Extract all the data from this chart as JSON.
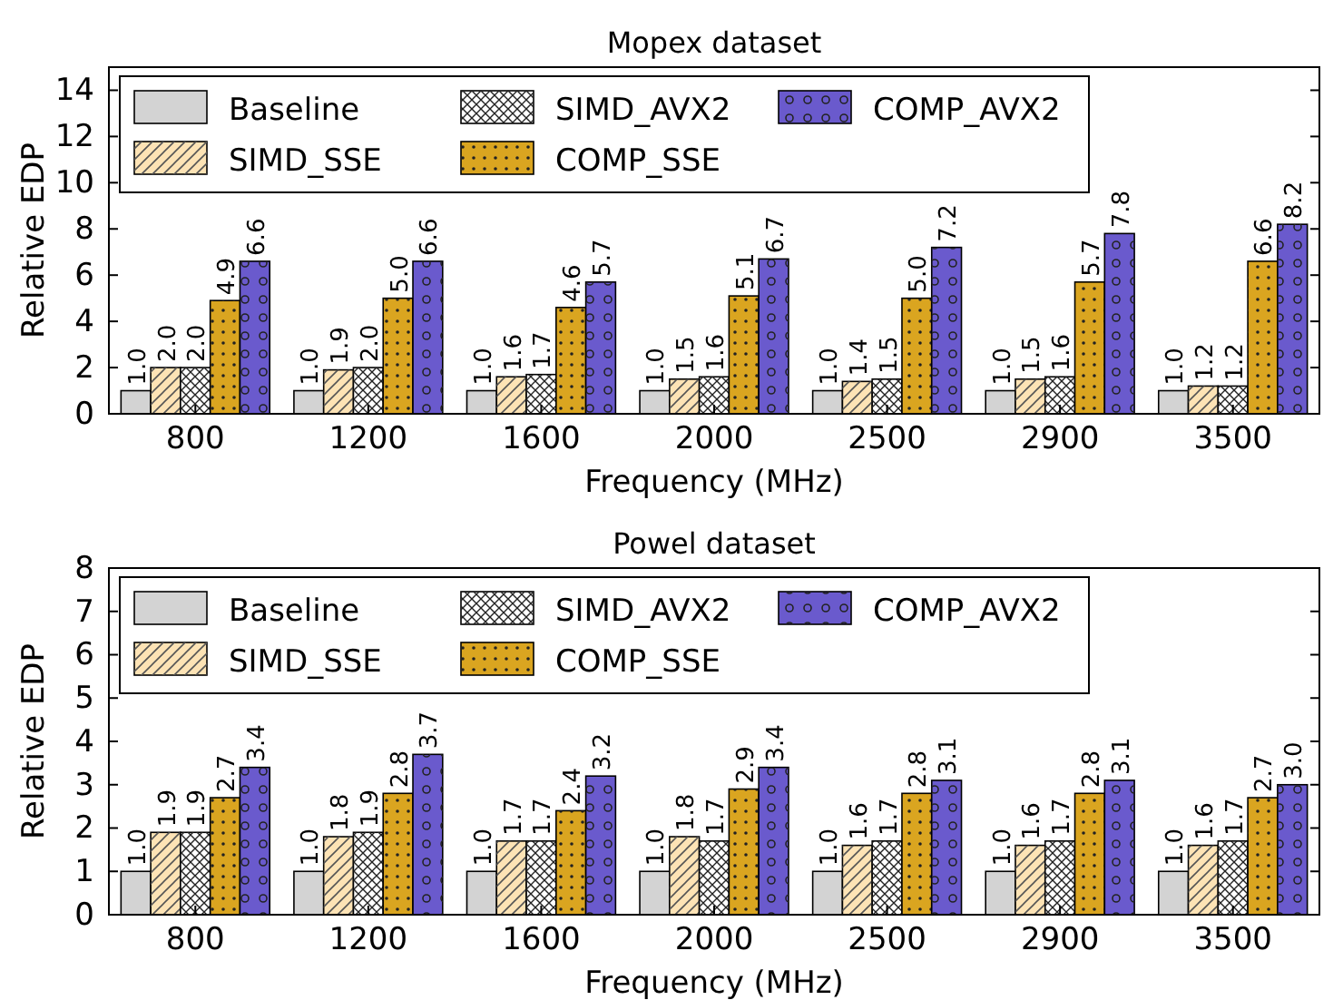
{
  "chart_data": [
    {
      "type": "bar",
      "title": "Mopex dataset",
      "xlabel": "Frequency (MHz)",
      "ylabel": "Relative EDP",
      "categories": [
        "800",
        "1200",
        "1600",
        "2000",
        "2500",
        "2900",
        "3500"
      ],
      "series": [
        {
          "name": "Baseline",
          "color": "#d3d3d3",
          "values": [
            1.0,
            1.0,
            1.0,
            1.0,
            1.0,
            1.0,
            1.0
          ],
          "value_labels": [
            "1.0",
            "1.0",
            "1.0",
            "1.0",
            "1.0",
            "1.0",
            "1.0"
          ]
        },
        {
          "name": "SIMD_SSE",
          "color": "#fde3b5",
          "values": [
            2.0,
            1.9,
            1.6,
            1.5,
            1.4,
            1.5,
            1.2
          ],
          "value_labels": [
            "2.0",
            "1.9",
            "1.6",
            "1.5",
            "1.4",
            "1.5",
            "1.2"
          ]
        },
        {
          "name": "SIMD_AVX2",
          "color": "#ffffff",
          "values": [
            2.0,
            2.0,
            1.7,
            1.6,
            1.5,
            1.6,
            1.2
          ],
          "value_labels": [
            "2.0",
            "2.0",
            "1.7",
            "1.6",
            "1.5",
            "1.6",
            "1.2"
          ]
        },
        {
          "name": "COMP_SSE",
          "color": "#daa520",
          "values": [
            4.9,
            5.0,
            4.6,
            5.1,
            5.0,
            5.7,
            6.6
          ],
          "value_labels": [
            "4.9",
            "5.0",
            "4.6",
            "5.1",
            "5.0",
            "5.7",
            "6.6"
          ]
        },
        {
          "name": "COMP_AVX2",
          "color": "#6a5acd",
          "values": [
            6.6,
            6.6,
            5.7,
            6.7,
            7.2,
            7.8,
            8.2
          ],
          "value_labels": [
            "6.6",
            "6.6",
            "5.7",
            "6.7",
            "7.2",
            "7.8",
            "8.2"
          ]
        }
      ],
      "ylim": [
        0,
        15
      ],
      "yticks": [
        0,
        2,
        4,
        6,
        8,
        10,
        12,
        14
      ],
      "legend": "top left"
    },
    {
      "type": "bar",
      "title": "Powel dataset",
      "xlabel": "Frequency (MHz)",
      "ylabel": "Relative EDP",
      "categories": [
        "800",
        "1200",
        "1600",
        "2000",
        "2500",
        "2900",
        "3500"
      ],
      "series": [
        {
          "name": "Baseline",
          "color": "#d3d3d3",
          "values": [
            1.0,
            1.0,
            1.0,
            1.0,
            1.0,
            1.0,
            1.0
          ],
          "value_labels": [
            "1.0",
            "1.0",
            "1.0",
            "1.0",
            "1.0",
            "1.0",
            "1.0"
          ]
        },
        {
          "name": "SIMD_SSE",
          "color": "#fde3b5",
          "values": [
            1.9,
            1.8,
            1.7,
            1.8,
            1.6,
            1.6,
            1.6
          ],
          "value_labels": [
            "1.9",
            "1.8",
            "1.7",
            "1.8",
            "1.6",
            "1.6",
            "1.6"
          ]
        },
        {
          "name": "SIMD_AVX2",
          "color": "#ffffff",
          "values": [
            1.9,
            1.9,
            1.7,
            1.7,
            1.7,
            1.7,
            1.7
          ],
          "value_labels": [
            "1.9",
            "1.9",
            "1.7",
            "1.7",
            "1.7",
            "1.7",
            "1.7"
          ]
        },
        {
          "name": "COMP_SSE",
          "color": "#daa520",
          "values": [
            2.7,
            2.8,
            2.4,
            2.9,
            2.8,
            2.8,
            2.7
          ],
          "value_labels": [
            "2.7",
            "2.8",
            "2.4",
            "2.9",
            "2.8",
            "2.8",
            "2.7"
          ]
        },
        {
          "name": "COMP_AVX2",
          "color": "#6a5acd",
          "values": [
            3.4,
            3.7,
            3.2,
            3.4,
            3.1,
            3.1,
            3.0
          ],
          "value_labels": [
            "3.4",
            "3.7",
            "3.2",
            "3.4",
            "3.1",
            "3.1",
            "3.0"
          ]
        }
      ],
      "ylim": [
        0,
        8
      ],
      "yticks": [
        0,
        1,
        2,
        3,
        4,
        5,
        6,
        7,
        8
      ],
      "legend": "top left"
    }
  ]
}
